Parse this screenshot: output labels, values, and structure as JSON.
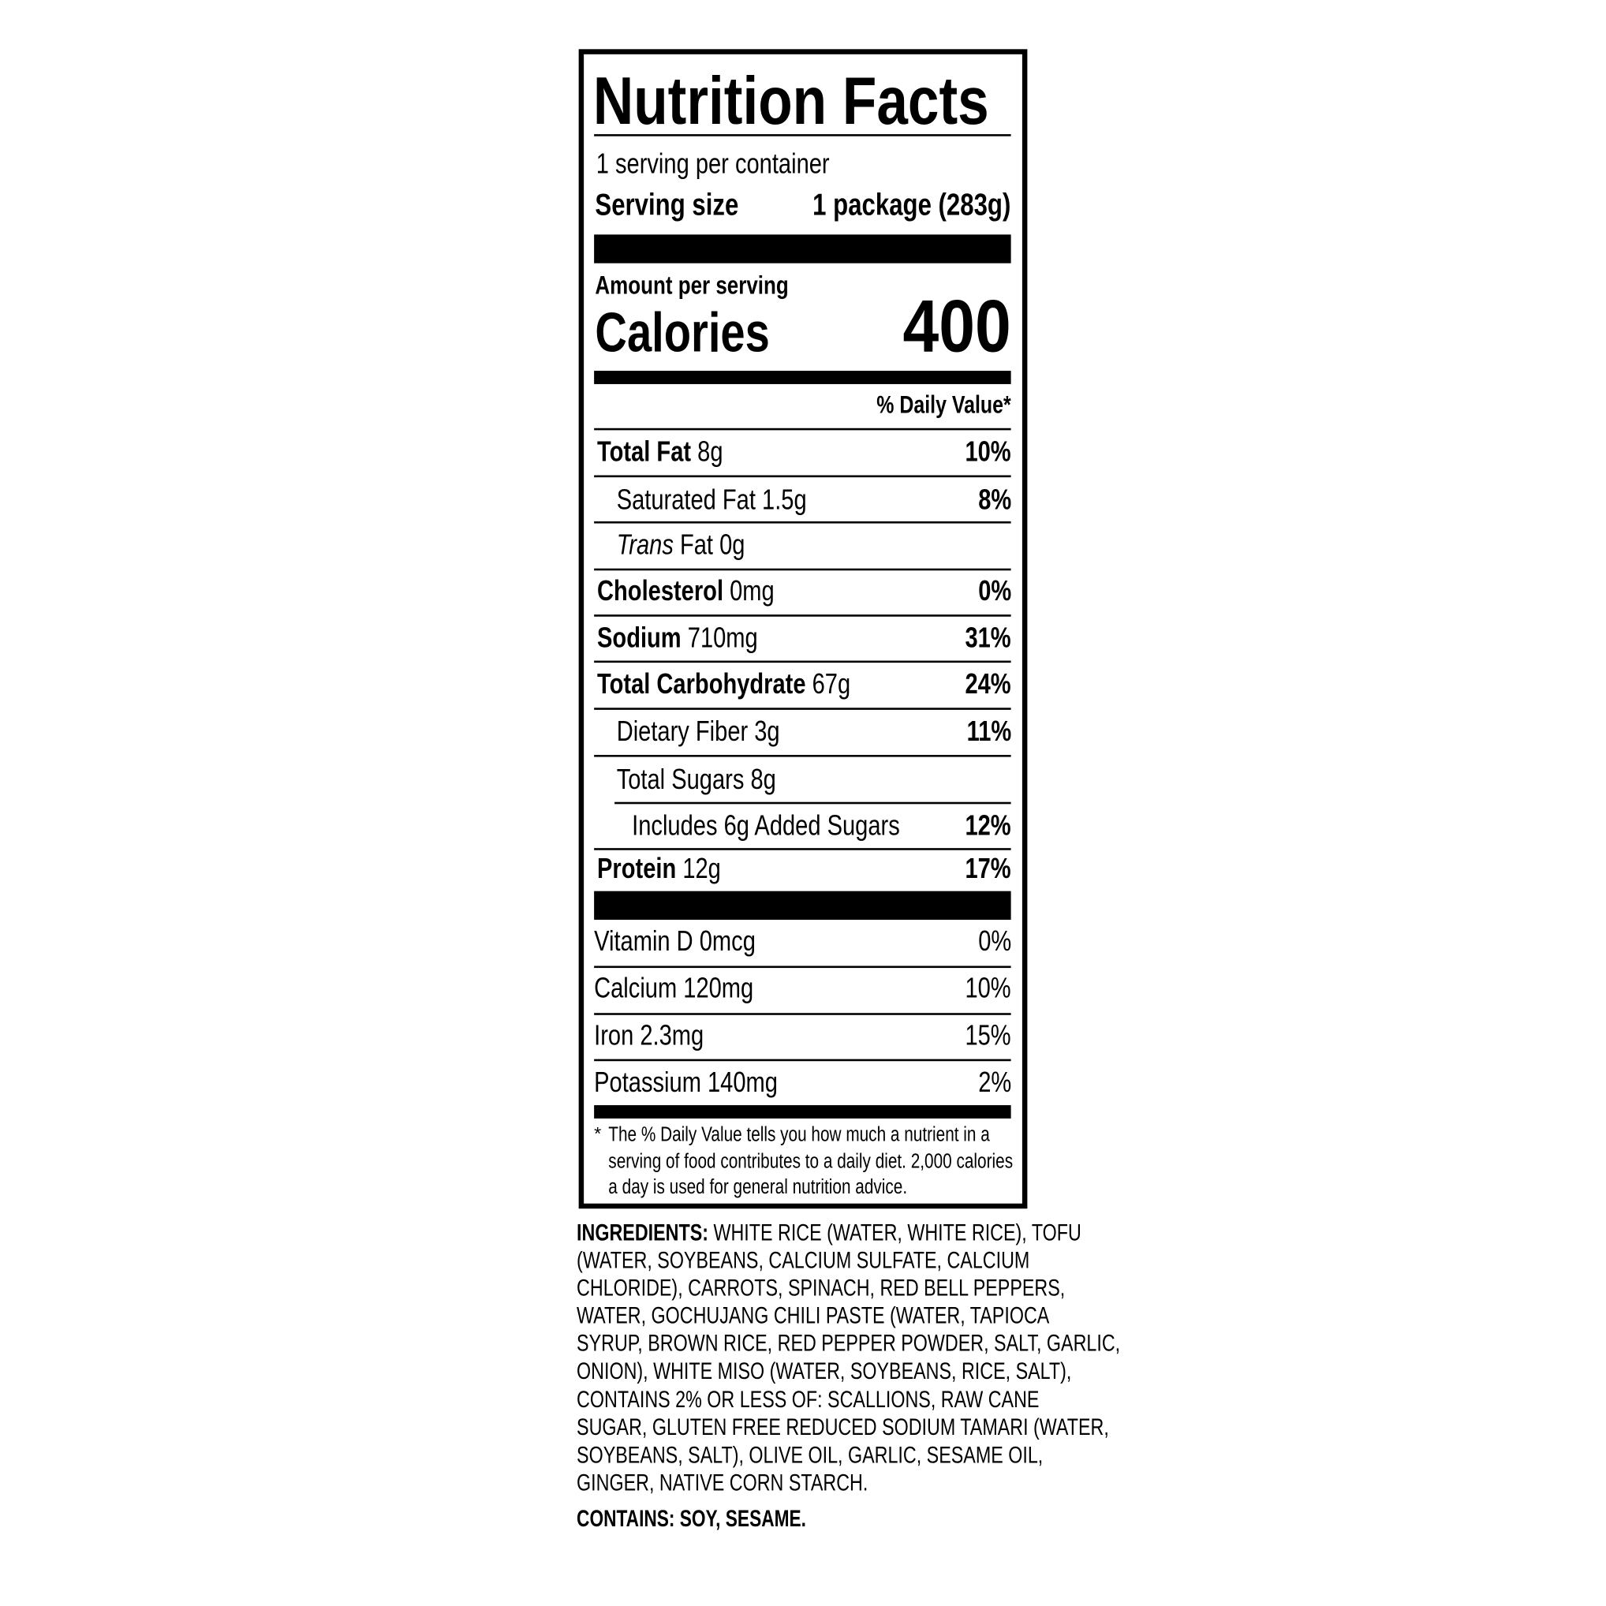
{
  "label": {
    "title": "Nutrition Facts",
    "servings_per_container": "1 serving per container",
    "serving_size_label": "Serving size",
    "serving_size_value": "1 package (283g)",
    "amount_per_serving": "Amount per serving",
    "calories_label": "Calories",
    "calories_value": "400",
    "daily_value_header": "% Daily Value*",
    "nutrients": [
      {
        "name": "Total Fat",
        "amount": "8g",
        "dv": "10%"
      },
      {
        "name": "Saturated Fat 1.5g",
        "amount": "",
        "dv": "8%"
      },
      {
        "name": "Trans",
        "amount": "Fat 0g",
        "dv": ""
      },
      {
        "name": "Cholesterol",
        "amount": "0mg",
        "dv": "0%"
      },
      {
        "name": "Sodium",
        "amount": "710mg",
        "dv": "31%"
      },
      {
        "name": "Total Carbohydrate",
        "amount": "67g",
        "dv": "24%"
      },
      {
        "name": "Dietary Fiber 3g",
        "amount": "",
        "dv": "11%"
      },
      {
        "name": "Total Sugars 8g",
        "amount": "",
        "dv": ""
      },
      {
        "name": "Includes 6g Added Sugars",
        "amount": "",
        "dv": "12%"
      },
      {
        "name": "Protein",
        "amount": "12g",
        "dv": "17%"
      }
    ],
    "vitamins": [
      {
        "name": "Vitamin D 0mcg",
        "dv": "0%"
      },
      {
        "name": "Calcium 120mg",
        "dv": "10%"
      },
      {
        "name": "Iron 2.3mg",
        "dv": "15%"
      },
      {
        "name": "Potassium 140mg",
        "dv": "2%"
      }
    ],
    "footnote_star": "*",
    "footnote": [
      "The % Daily Value tells you how much a nutrient in a",
      "serving of food contributes to a daily diet. 2,000 calories",
      "a day is used for general nutrition advice."
    ]
  },
  "ingredients": {
    "label": "INGREDIENTS:",
    "lines": [
      " WHITE RICE (WATER, WHITE RICE), TOFU",
      "(WATER, SOYBEANS, CALCIUM SULFATE, CALCIUM",
      "CHLORIDE), CARROTS, SPINACH, RED BELL PEPPERS,",
      "WATER, GOCHUJANG CHILI PASTE (WATER, TAPIOCA",
      "SYRUP, BROWN RICE, RED PEPPER POWDER, SALT, GARLIC,",
      "ONION), WHITE MISO (WATER, SOYBEANS, RICE, SALT),",
      "CONTAINS 2% OR LESS OF: SCALLIONS, RAW CANE",
      "SUGAR, GLUTEN FREE REDUCED SODIUM TAMARI (WATER,",
      "SOYBEANS, SALT), OLIVE OIL, GARLIC, SESAME OIL,",
      "GINGER, NATIVE CORN STARCH."
    ],
    "contains": "CONTAINS: SOY, SESAME."
  }
}
